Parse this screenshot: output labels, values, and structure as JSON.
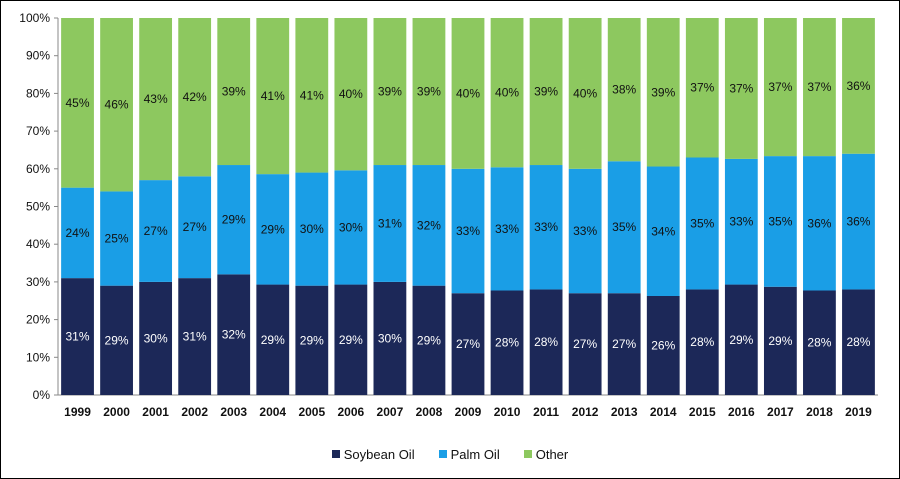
{
  "chart_data": {
    "type": "bar",
    "stacked": true,
    "categories": [
      "1999",
      "2000",
      "2001",
      "2002",
      "2003",
      "2004",
      "2005",
      "2006",
      "2007",
      "2008",
      "2009",
      "2010",
      "2011",
      "2012",
      "2013",
      "2014",
      "2015",
      "2016",
      "2017",
      "2018",
      "2019"
    ],
    "series": [
      {
        "name": "Soybean Oil",
        "color": "#1c2858",
        "values": [
          31,
          29,
          30,
          31,
          32,
          29,
          29,
          29,
          30,
          29,
          27,
          28,
          28,
          27,
          27,
          26,
          28,
          29,
          29,
          28,
          28
        ],
        "labels": [
          "31%",
          "29%",
          "30%",
          "31%",
          "32%",
          "29%",
          "29%",
          "29%",
          "30%",
          "29%",
          "27%",
          "28%",
          "28%",
          "27%",
          "27%",
          "26%",
          "28%",
          "29%",
          "29%",
          "28%",
          "28%"
        ]
      },
      {
        "name": "Palm Oil",
        "color": "#1a9ee6",
        "values": [
          24,
          25,
          27,
          27,
          29,
          29,
          30,
          30,
          31,
          32,
          33,
          33,
          33,
          33,
          35,
          34,
          35,
          33,
          35,
          36,
          36
        ],
        "labels": [
          "24%",
          "25%",
          "27%",
          "27%",
          "29%",
          "29%",
          "30%",
          "30%",
          "31%",
          "32%",
          "33%",
          "33%",
          "33%",
          "33%",
          "35%",
          "34%",
          "35%",
          "33%",
          "35%",
          "36%",
          "36%"
        ]
      },
      {
        "name": "Other",
        "color": "#8dc85f",
        "values": [
          45,
          46,
          43,
          42,
          39,
          41,
          41,
          40,
          39,
          39,
          40,
          40,
          39,
          40,
          38,
          39,
          37,
          37,
          37,
          37,
          36
        ],
        "labels": [
          "45%",
          "46%",
          "43%",
          "42%",
          "39%",
          "41%",
          "41%",
          "40%",
          "39%",
          "39%",
          "40%",
          "40%",
          "39%",
          "40%",
          "38%",
          "39%",
          "37%",
          "37%",
          "37%",
          "37%",
          "36%"
        ]
      }
    ],
    "ylim": [
      0,
      100
    ],
    "yticks": [
      "0%",
      "10%",
      "20%",
      "30%",
      "40%",
      "50%",
      "60%",
      "70%",
      "80%",
      "90%",
      "100%"
    ],
    "title": "",
    "xlabel": "",
    "ylabel": "",
    "legend_position": "bottom",
    "grid": false
  }
}
